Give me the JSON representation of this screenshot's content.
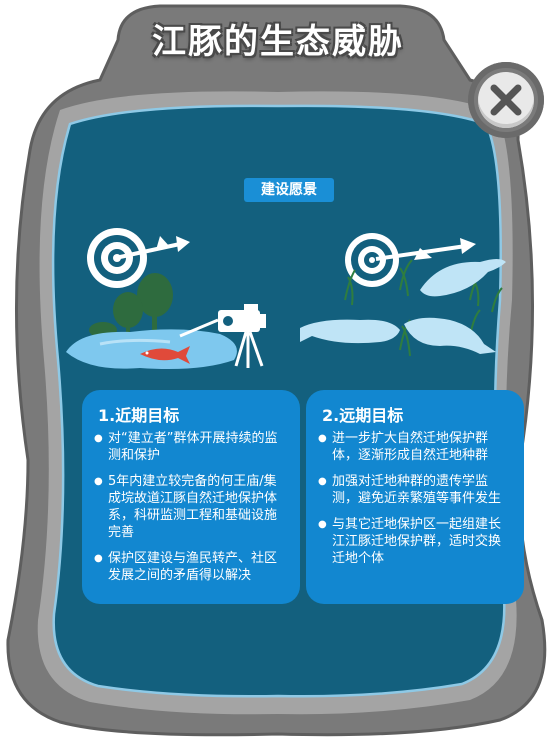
{
  "panel": {
    "title": "江豚的生态威胁",
    "section_label": "建设愿景"
  },
  "icons": {
    "close": "close-icon",
    "left_target": "target-icon",
    "right_target": "target-icon",
    "camera": "camera-icon",
    "fish": "fish-icon",
    "porpoise": "porpoise-icon"
  },
  "colors": {
    "frame": "#7a7a7a",
    "panel_bg": "#13607e",
    "card_bg": "#1287d0",
    "badge_bg": "#1a8fd6"
  },
  "cards": [
    {
      "title": "1.近期目标",
      "items": [
        "对“建立者”群体开展持续的监测和保护",
        "5年内建立较完备的何王庙/集成垸故道江豚自然迁地保护体系，科研监测工程和基础设施完善",
        "保护区建设与渔民转产、社区发展之间的矛盾得以解决"
      ]
    },
    {
      "title": "2.远期目标",
      "items": [
        "进一步扩大自然迁地保护群体，逐渐形成自然迁地种群",
        "加强对迁地种群的遗传学监测，避免近亲繁殖等事件发生",
        "与其它迁地保护区一起组建长江江豚迁地保护群，适时交换迁地个体"
      ]
    }
  ]
}
